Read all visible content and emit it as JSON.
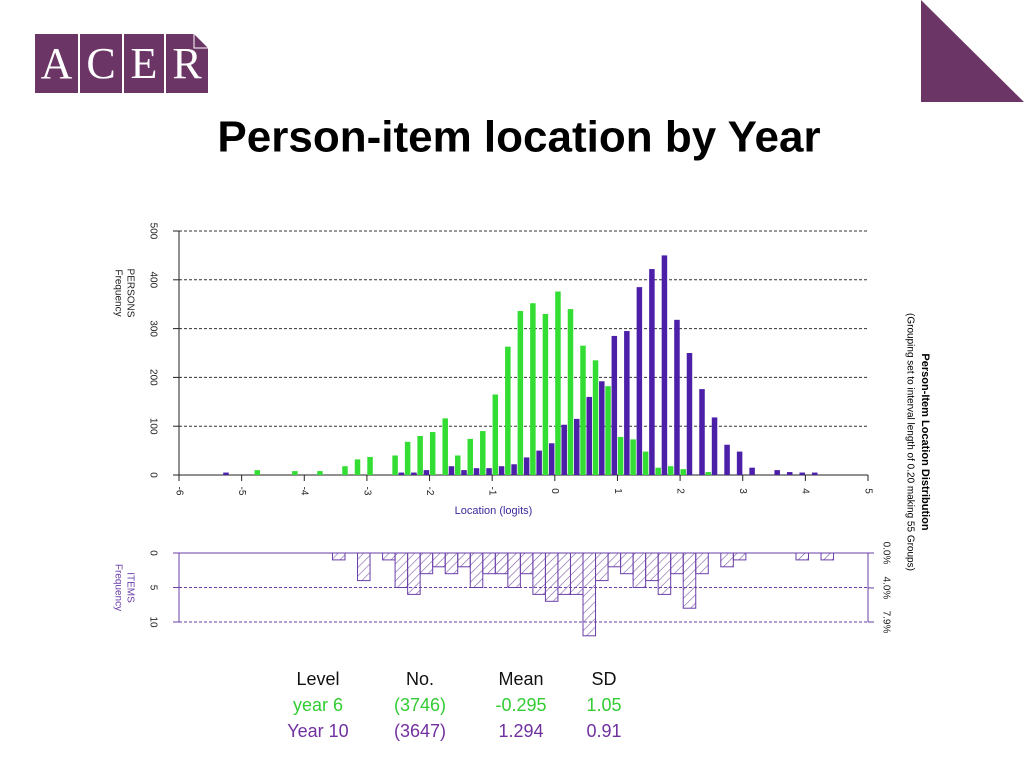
{
  "header": {
    "logo": [
      "A",
      "C",
      "E",
      "R"
    ],
    "title": "Person-item location by Year"
  },
  "chart_data": [
    {
      "type": "bar",
      "title": "Person-Item Location Distribution",
      "subtitle": "(Grouping set to interval length of 0.20 making 55 Groups)",
      "xlabel": "Location (logits)",
      "ylabel": [
        "PERSONS",
        "Frequency"
      ],
      "xlim": [
        -6,
        5
      ],
      "xticks": [
        -6,
        -5,
        -4,
        -3,
        -2,
        -1,
        0,
        1,
        2,
        3,
        4,
        5
      ],
      "ylim": [
        0,
        500
      ],
      "yticks": [
        0,
        100,
        200,
        300,
        400,
        500
      ],
      "grid": true,
      "series": [
        {
          "color": "#33dd33",
          "x": [
            -4.75,
            -4.15,
            -3.75,
            -3.35,
            -3.15,
            -2.95,
            -2.55,
            -2.35,
            -2.15,
            -1.95,
            -1.75,
            -1.55,
            -1.35,
            -1.15,
            -0.95,
            -0.75,
            -0.55,
            -0.35,
            -0.15,
            0.05,
            0.25,
            0.45,
            0.65,
            0.85,
            1.05,
            1.25,
            1.45,
            1.65,
            1.85,
            2.05,
            2.45
          ],
          "values": [
            10,
            8,
            8,
            18,
            32,
            37,
            40,
            68,
            80,
            88,
            116,
            40,
            74,
            90,
            165,
            263,
            336,
            352,
            330,
            376,
            340,
            265,
            235,
            182,
            78,
            73,
            48,
            15,
            18,
            12,
            6
          ]
        },
        {
          "color": "#4b1fa8",
          "x": [
            -5.25,
            -2.45,
            -2.25,
            -2.05,
            -1.65,
            -1.45,
            -1.25,
            -1.05,
            -0.85,
            -0.65,
            -0.45,
            -0.25,
            -0.05,
            0.15,
            0.35,
            0.55,
            0.75,
            0.95,
            1.15,
            1.35,
            1.55,
            1.75,
            1.95,
            2.15,
            2.35,
            2.55,
            2.75,
            2.95,
            3.15,
            3.55,
            3.75,
            3.95,
            4.15
          ],
          "values": [
            5,
            5,
            5,
            10,
            18,
            10,
            14,
            14,
            18,
            22,
            36,
            50,
            65,
            103,
            115,
            160,
            192,
            285,
            295,
            385,
            422,
            450,
            318,
            250,
            176,
            118,
            62,
            48,
            15,
            10,
            6,
            5,
            5
          ]
        }
      ]
    },
    {
      "type": "bar",
      "ylabel": [
        "ITEMS",
        "Frequency"
      ],
      "xlim": [
        -6,
        5
      ],
      "ylim": [
        0,
        10
      ],
      "yticks": [
        0,
        5,
        10
      ],
      "y_inverted": true,
      "grid": true,
      "hatch": true,
      "y2lim": [
        0,
        7.9
      ],
      "y2ticks": [
        {
          "value": 0,
          "label": "0.0%"
        },
        {
          "value": 4,
          "label": "4.0%"
        },
        {
          "value": 7.9,
          "label": "7.9%"
        }
      ],
      "series": [
        {
          "color": "#6a3fa8",
          "x": [
            -3.45,
            -3.05,
            -2.65,
            -2.45,
            -2.25,
            -2.05,
            -1.85,
            -1.65,
            -1.45,
            -1.25,
            -1.05,
            -0.85,
            -0.65,
            -0.45,
            -0.25,
            -0.05,
            0.15,
            0.35,
            0.55,
            0.75,
            0.95,
            1.15,
            1.35,
            1.55,
            1.75,
            1.95,
            2.15,
            2.35,
            2.75,
            2.95,
            3.95,
            4.35
          ],
          "values": [
            1,
            4,
            1,
            5,
            6,
            3,
            2,
            3,
            2,
            5,
            3,
            3,
            5,
            3,
            6,
            7,
            6,
            6,
            12,
            4,
            2,
            3,
            5,
            4,
            6,
            3,
            8,
            3,
            2,
            1,
            1,
            1
          ]
        }
      ]
    }
  ],
  "table": {
    "header": [
      "Level",
      "No.",
      "Mean",
      "SD"
    ],
    "rows": [
      {
        "color": "#33cc33",
        "cells": [
          "year 6",
          "(3746)",
          "-0.295",
          "1.05"
        ]
      },
      {
        "color": "#7030a0",
        "cells": [
          "Year 10",
          "(3647)",
          "1.294",
          "0.91"
        ]
      }
    ]
  }
}
